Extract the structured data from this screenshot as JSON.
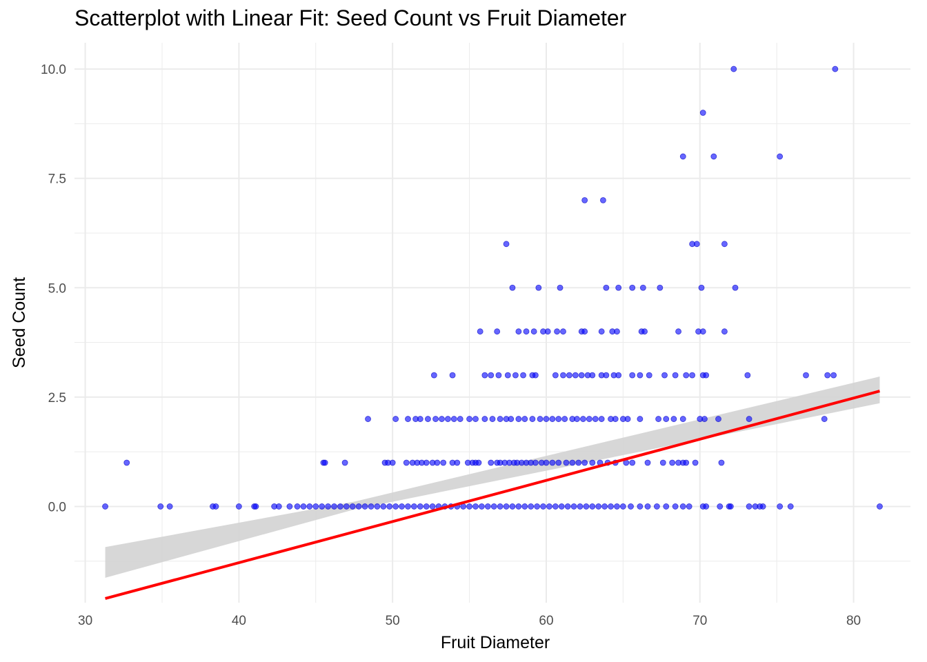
{
  "chart_data": {
    "type": "scatter",
    "title": "Scatterplot with Linear Fit: Seed Count vs Fruit Diameter",
    "xlabel": "Fruit Diameter",
    "ylabel": "Seed Count",
    "xlim": [
      29.3,
      83.7
    ],
    "ylim": [
      -2.2,
      10.6
    ],
    "x_ticks": [
      30,
      40,
      50,
      60,
      70,
      80
    ],
    "x_tick_labels": [
      "30",
      "40",
      "50",
      "60",
      "70",
      "80"
    ],
    "y_ticks": [
      0,
      2.5,
      5,
      7.5,
      10
    ],
    "y_tick_labels": [
      "0.0",
      "2.5",
      "5.0",
      "7.5",
      "10.0"
    ],
    "grid": true,
    "legend": "none",
    "colors": {
      "points": "#0000ff",
      "fit_line": "#ff0000",
      "confidence_band": "#d3d3d3",
      "grid": "#ebebeb"
    },
    "series": [
      {
        "values": [
          [
            31.3,
            0
          ],
          [
            34.9,
            0
          ],
          [
            35.5,
            0
          ],
          [
            38.3,
            0
          ],
          [
            38.5,
            0
          ],
          [
            40.0,
            0
          ],
          [
            41.0,
            0
          ],
          [
            41.1,
            0
          ],
          [
            42.3,
            0
          ],
          [
            42.6,
            0
          ],
          [
            43.3,
            0
          ],
          [
            43.8,
            0
          ],
          [
            44.2,
            0
          ],
          [
            44.6,
            0
          ],
          [
            45.0,
            0
          ],
          [
            45.4,
            0
          ],
          [
            45.8,
            0
          ],
          [
            46.2,
            0
          ],
          [
            46.6,
            0
          ],
          [
            47.0,
            0
          ],
          [
            47.4,
            0
          ],
          [
            47.8,
            0
          ],
          [
            48.2,
            0
          ],
          [
            48.6,
            0
          ],
          [
            49.0,
            0
          ],
          [
            49.4,
            0
          ],
          [
            49.8,
            0
          ],
          [
            50.2,
            0
          ],
          [
            50.6,
            0
          ],
          [
            51.0,
            0
          ],
          [
            51.4,
            0
          ],
          [
            51.8,
            0
          ],
          [
            52.2,
            0
          ],
          [
            52.6,
            0
          ],
          [
            53.0,
            0
          ],
          [
            53.4,
            0
          ],
          [
            53.8,
            0
          ],
          [
            54.2,
            0
          ],
          [
            54.6,
            0
          ],
          [
            55.0,
            0
          ],
          [
            55.4,
            0
          ],
          [
            55.8,
            0
          ],
          [
            56.2,
            0
          ],
          [
            56.6,
            0
          ],
          [
            57.0,
            0
          ],
          [
            57.4,
            0
          ],
          [
            57.8,
            0
          ],
          [
            58.2,
            0
          ],
          [
            58.6,
            0
          ],
          [
            59.0,
            0
          ],
          [
            59.4,
            0
          ],
          [
            59.8,
            0
          ],
          [
            60.2,
            0
          ],
          [
            60.6,
            0
          ],
          [
            61.0,
            0
          ],
          [
            61.4,
            0
          ],
          [
            61.8,
            0
          ],
          [
            62.2,
            0
          ],
          [
            62.6,
            0
          ],
          [
            63.0,
            0
          ],
          [
            63.4,
            0
          ],
          [
            63.8,
            0
          ],
          [
            64.2,
            0
          ],
          [
            64.6,
            0
          ],
          [
            65.0,
            0
          ],
          [
            65.5,
            0
          ],
          [
            66.1,
            0
          ],
          [
            66.6,
            0
          ],
          [
            67.2,
            0
          ],
          [
            67.8,
            0
          ],
          [
            68.4,
            0
          ],
          [
            68.9,
            0
          ],
          [
            69.3,
            0
          ],
          [
            70.2,
            0
          ],
          [
            70.4,
            0
          ],
          [
            71.3,
            0
          ],
          [
            71.9,
            0
          ],
          [
            72.0,
            0
          ],
          [
            73.2,
            0
          ],
          [
            73.6,
            0
          ],
          [
            73.9,
            0
          ],
          [
            74.1,
            0
          ],
          [
            75.2,
            0
          ],
          [
            75.9,
            0
          ],
          [
            81.7,
            0
          ],
          [
            32.7,
            1
          ],
          [
            45.5,
            1
          ],
          [
            45.6,
            1
          ],
          [
            46.9,
            1
          ],
          [
            49.5,
            1
          ],
          [
            49.7,
            1
          ],
          [
            50.0,
            1
          ],
          [
            50.9,
            1
          ],
          [
            51.3,
            1
          ],
          [
            51.6,
            1
          ],
          [
            51.9,
            1
          ],
          [
            52.2,
            1
          ],
          [
            52.6,
            1
          ],
          [
            52.9,
            1
          ],
          [
            53.3,
            1
          ],
          [
            53.9,
            1
          ],
          [
            54.2,
            1
          ],
          [
            54.9,
            1
          ],
          [
            55.2,
            1
          ],
          [
            55.4,
            1
          ],
          [
            55.6,
            1
          ],
          [
            56.4,
            1
          ],
          [
            56.8,
            1
          ],
          [
            57.0,
            1
          ],
          [
            57.3,
            1
          ],
          [
            57.6,
            1
          ],
          [
            57.9,
            1
          ],
          [
            58.1,
            1
          ],
          [
            58.4,
            1
          ],
          [
            58.7,
            1
          ],
          [
            59.0,
            1
          ],
          [
            59.3,
            1
          ],
          [
            59.7,
            1
          ],
          [
            60.0,
            1
          ],
          [
            60.4,
            1
          ],
          [
            60.8,
            1
          ],
          [
            61.3,
            1
          ],
          [
            61.7,
            1
          ],
          [
            62.1,
            1
          ],
          [
            62.5,
            1
          ],
          [
            63.0,
            1
          ],
          [
            63.5,
            1
          ],
          [
            64.0,
            1
          ],
          [
            64.5,
            1
          ],
          [
            65.2,
            1
          ],
          [
            65.6,
            1
          ],
          [
            66.6,
            1
          ],
          [
            67.6,
            1
          ],
          [
            68.2,
            1
          ],
          [
            68.6,
            1
          ],
          [
            68.9,
            1
          ],
          [
            69.1,
            1
          ],
          [
            69.7,
            1
          ],
          [
            71.4,
            1
          ],
          [
            48.4,
            2
          ],
          [
            50.2,
            2
          ],
          [
            51.0,
            2
          ],
          [
            51.5,
            2
          ],
          [
            51.8,
            2
          ],
          [
            52.3,
            2
          ],
          [
            52.8,
            2
          ],
          [
            53.2,
            2
          ],
          [
            53.6,
            2
          ],
          [
            54.0,
            2
          ],
          [
            54.4,
            2
          ],
          [
            55.0,
            2
          ],
          [
            55.4,
            2
          ],
          [
            56.0,
            2
          ],
          [
            56.5,
            2
          ],
          [
            57.0,
            2
          ],
          [
            57.4,
            2
          ],
          [
            57.7,
            2
          ],
          [
            58.2,
            2
          ],
          [
            58.6,
            2
          ],
          [
            59.1,
            2
          ],
          [
            59.6,
            2
          ],
          [
            60.0,
            2
          ],
          [
            60.4,
            2
          ],
          [
            60.8,
            2
          ],
          [
            61.2,
            2
          ],
          [
            61.7,
            2
          ],
          [
            62.0,
            2
          ],
          [
            62.4,
            2
          ],
          [
            62.8,
            2
          ],
          [
            63.2,
            2
          ],
          [
            63.6,
            2
          ],
          [
            64.2,
            2
          ],
          [
            64.5,
            2
          ],
          [
            65.0,
            2
          ],
          [
            65.3,
            2
          ],
          [
            66.1,
            2
          ],
          [
            67.3,
            2
          ],
          [
            67.8,
            2
          ],
          [
            68.3,
            2
          ],
          [
            68.9,
            2
          ],
          [
            70.0,
            2
          ],
          [
            70.3,
            2
          ],
          [
            71.2,
            2
          ],
          [
            73.2,
            2
          ],
          [
            78.1,
            2
          ],
          [
            52.7,
            3
          ],
          [
            53.9,
            3
          ],
          [
            56.0,
            3
          ],
          [
            56.4,
            3
          ],
          [
            56.9,
            3
          ],
          [
            57.5,
            3
          ],
          [
            58.0,
            3
          ],
          [
            58.5,
            3
          ],
          [
            59.1,
            3
          ],
          [
            59.3,
            3
          ],
          [
            60.6,
            3
          ],
          [
            61.1,
            3
          ],
          [
            61.5,
            3
          ],
          [
            61.9,
            3
          ],
          [
            62.3,
            3
          ],
          [
            62.7,
            3
          ],
          [
            63.0,
            3
          ],
          [
            63.6,
            3
          ],
          [
            63.9,
            3
          ],
          [
            64.4,
            3
          ],
          [
            64.7,
            3
          ],
          [
            65.6,
            3
          ],
          [
            66.1,
            3
          ],
          [
            66.7,
            3
          ],
          [
            67.7,
            3
          ],
          [
            68.4,
            3
          ],
          [
            69.1,
            3
          ],
          [
            69.5,
            3
          ],
          [
            70.2,
            3
          ],
          [
            70.4,
            3
          ],
          [
            73.1,
            3
          ],
          [
            76.9,
            3
          ],
          [
            78.3,
            3
          ],
          [
            78.7,
            3
          ],
          [
            55.7,
            4
          ],
          [
            56.8,
            4
          ],
          [
            58.2,
            4
          ],
          [
            58.7,
            4
          ],
          [
            59.2,
            4
          ],
          [
            59.8,
            4
          ],
          [
            60.1,
            4
          ],
          [
            60.7,
            4
          ],
          [
            61.1,
            4
          ],
          [
            62.3,
            4
          ],
          [
            62.5,
            4
          ],
          [
            63.6,
            4
          ],
          [
            64.3,
            4
          ],
          [
            64.6,
            4
          ],
          [
            66.2,
            4
          ],
          [
            66.4,
            4
          ],
          [
            68.6,
            4
          ],
          [
            69.9,
            4
          ],
          [
            70.2,
            4
          ],
          [
            71.6,
            4
          ],
          [
            57.8,
            5
          ],
          [
            59.5,
            5
          ],
          [
            60.9,
            5
          ],
          [
            63.9,
            5
          ],
          [
            64.7,
            5
          ],
          [
            65.6,
            5
          ],
          [
            66.3,
            5
          ],
          [
            67.4,
            5
          ],
          [
            70.1,
            5
          ],
          [
            72.3,
            5
          ],
          [
            57.4,
            6
          ],
          [
            69.5,
            6
          ],
          [
            69.8,
            6
          ],
          [
            71.6,
            6
          ],
          [
            62.5,
            7
          ],
          [
            63.7,
            7
          ],
          [
            68.9,
            8
          ],
          [
            70.9,
            8
          ],
          [
            75.2,
            8
          ],
          [
            70.2,
            9
          ],
          [
            72.2,
            10
          ],
          [
            78.8,
            10
          ]
        ]
      }
    ],
    "fit": {
      "method": "linear",
      "x_range": [
        31.3,
        81.7
      ],
      "intercept": -5.05,
      "slope": 0.0941,
      "band": [
        [
          31.3,
          -1.63,
          -0.93
        ],
        [
          47.5,
          -0.07,
          0.11
        ],
        [
          81.7,
          2.36,
          2.97
        ]
      ]
    }
  }
}
